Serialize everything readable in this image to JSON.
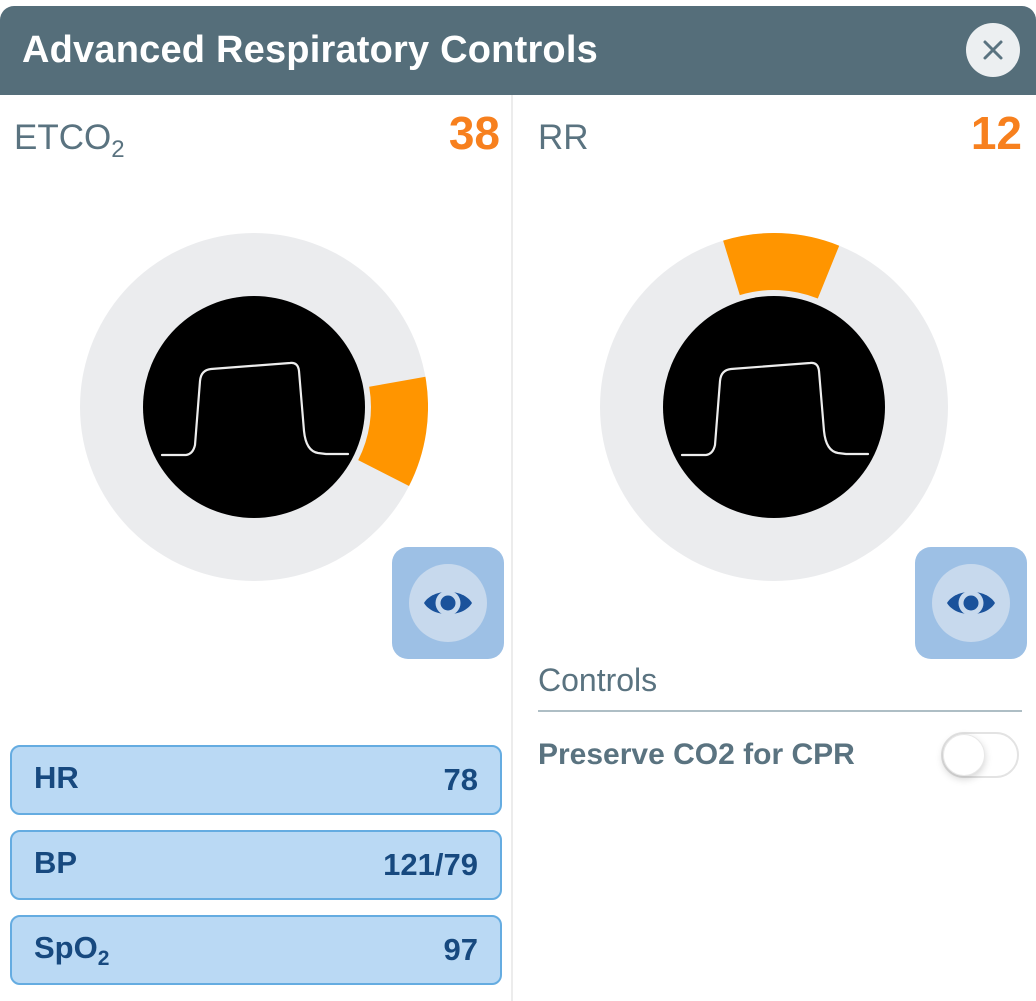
{
  "header": {
    "title": "Advanced Respiratory Controls"
  },
  "panels": [
    {
      "id": "etco2",
      "label": "ETCO",
      "label_sub": "2",
      "value": "38"
    },
    {
      "id": "rr",
      "label": "RR",
      "label_sub": "",
      "value": "12"
    }
  ],
  "dials": [
    {
      "metric": "ETCO2",
      "value": 38,
      "wedge_start_deg": -10,
      "wedge_end_deg": 27
    },
    {
      "metric": "RR",
      "value": 12,
      "wedge_start_deg": -107,
      "wedge_end_deg": -68
    }
  ],
  "vitals": [
    {
      "label": "HR",
      "label_sub": "",
      "value": "78"
    },
    {
      "label": "BP",
      "label_sub": "",
      "value": "121/79"
    },
    {
      "label": "SpO",
      "label_sub": "2",
      "value": "97"
    }
  ],
  "controls": {
    "heading": "Controls",
    "items": [
      {
        "label": "Preserve CO2 for CPR",
        "type": "toggle",
        "state": "off"
      }
    ]
  },
  "icons": {
    "close": "close-icon",
    "eye": "eye-visibility-icon"
  },
  "colors": {
    "header_bg": "#556E7A",
    "wedge_orange": "#FF9500",
    "value_orange": "#F7801E",
    "label_slate": "#5A7380",
    "dial_ring": "#EBECEE",
    "dial_face": "#000000",
    "waveform": "#EDEDED",
    "eye_button_bg": "#9DC0E5",
    "eye_button_inner": "#C7D9ED",
    "eye_icon": "#1A529B",
    "vital_bg": "#BAD9F4",
    "vital_border": "#65ACE1",
    "vital_text": "#17497F"
  }
}
